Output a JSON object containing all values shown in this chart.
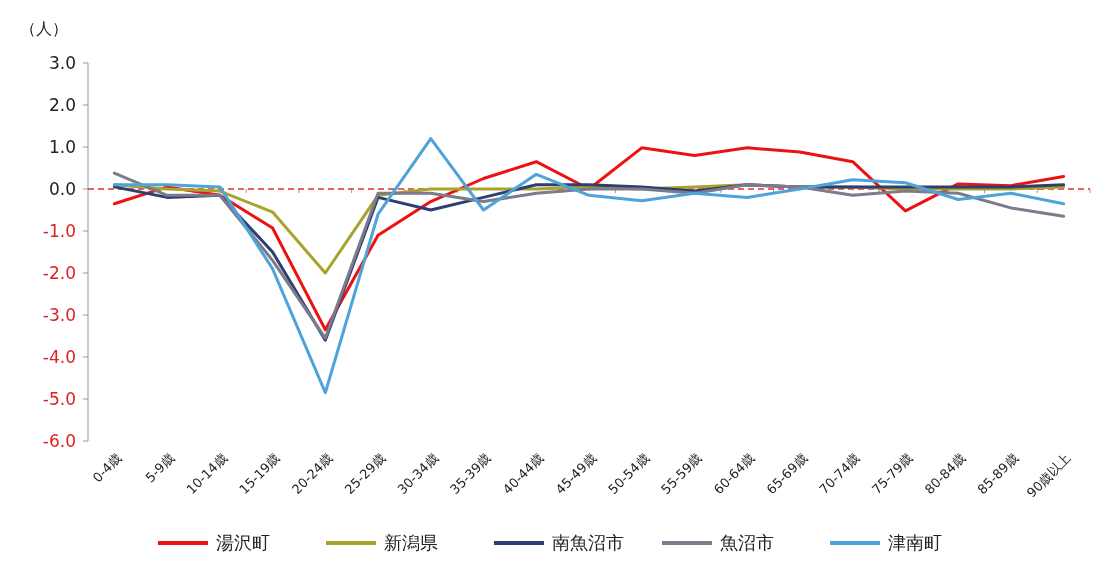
{
  "chart_data": {
    "type": "line",
    "ylabel": "（人）",
    "categories": [
      "0-4歳",
      "5-9歳",
      "10-14歳",
      "15-19歳",
      "20-24歳",
      "25-29歳",
      "30-34歳",
      "35-39歳",
      "40-44歳",
      "45-49歳",
      "50-54歳",
      "55-59歳",
      "60-64歳",
      "65-69歳",
      "70-74歳",
      "75-79歳",
      "80-84歳",
      "85-89歳",
      "90歳以上"
    ],
    "series": [
      {
        "name": "湯沢町",
        "color": "#ee1111",
        "values": [
          -0.35,
          0.05,
          -0.15,
          -0.93,
          -3.35,
          -1.1,
          -0.3,
          0.25,
          0.65,
          0.0,
          0.98,
          0.8,
          0.98,
          0.88,
          0.65,
          -0.52,
          0.12,
          0.08,
          0.3
        ]
      },
      {
        "name": "新潟県",
        "color": "#a8a32a",
        "values": [
          0.1,
          0.0,
          -0.05,
          -0.55,
          -2.0,
          -0.15,
          0.0,
          0.0,
          0.0,
          0.05,
          0.0,
          0.05,
          0.1,
          0.05,
          0.05,
          0.0,
          0.0,
          0.0,
          0.05
        ]
      },
      {
        "name": "南魚沼市",
        "color": "#2c3f72",
        "values": [
          0.05,
          -0.2,
          -0.15,
          -1.5,
          -3.6,
          -0.2,
          -0.5,
          -0.2,
          0.1,
          0.1,
          0.05,
          -0.05,
          0.1,
          0.05,
          0.05,
          0.05,
          0.05,
          0.05,
          0.1
        ]
      },
      {
        "name": "魚沼市",
        "color": "#7d7a8c",
        "values": [
          0.38,
          -0.15,
          -0.15,
          -1.7,
          -3.55,
          -0.1,
          -0.1,
          -0.3,
          -0.1,
          0.0,
          0.0,
          -0.1,
          0.1,
          0.05,
          -0.15,
          -0.05,
          -0.1,
          -0.45,
          -0.65
        ]
      },
      {
        "name": "津南町",
        "color": "#4fa3db",
        "values": [
          0.1,
          0.1,
          0.05,
          -1.9,
          -4.85,
          -0.6,
          1.2,
          -0.5,
          0.35,
          -0.15,
          -0.28,
          -0.1,
          -0.2,
          0.0,
          0.22,
          0.15,
          -0.25,
          -0.1,
          -0.35
        ]
      }
    ],
    "ylim": [
      -6,
      3
    ],
    "yticks": [
      {
        "value": 3,
        "label": "3.0"
      },
      {
        "value": 2,
        "label": "2.0"
      },
      {
        "value": 1,
        "label": "1.0"
      },
      {
        "value": 0,
        "label": "0.0"
      },
      {
        "value": -1,
        "label": "-1.0"
      },
      {
        "value": -2,
        "label": "-2.0"
      },
      {
        "value": -3,
        "label": "-3.0"
      },
      {
        "value": -4,
        "label": "-4.0"
      },
      {
        "value": -5,
        "label": "-5.0"
      },
      {
        "value": -6,
        "label": "-6.0"
      }
    ],
    "ref_lines": [
      {
        "axis": "y",
        "value": 0,
        "color": "#e03030",
        "line_style": "dashed"
      }
    ],
    "grid": false,
    "legend": "bottom",
    "marker": "none",
    "line_style": "solid"
  }
}
